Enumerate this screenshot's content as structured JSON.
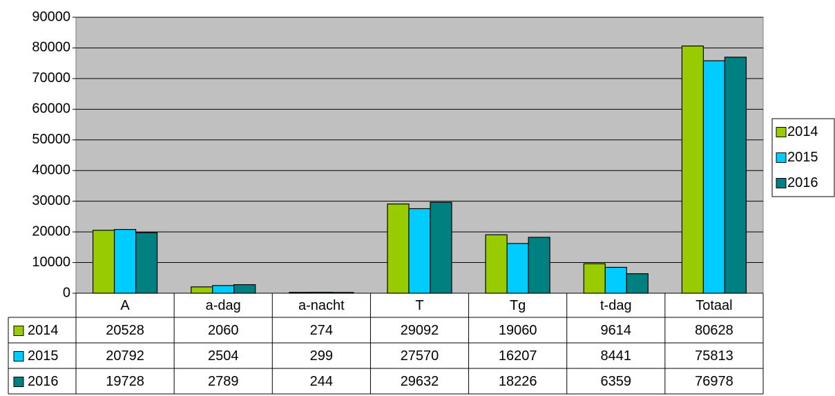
{
  "chart_data": {
    "type": "bar",
    "categories": [
      "A",
      "a-dag",
      "a-nacht",
      "T",
      "Tg",
      "t-dag",
      "Totaal"
    ],
    "series": [
      {
        "name": "2014",
        "color": "#99cc00",
        "values": [
          20528,
          2060,
          274,
          29092,
          19060,
          9614,
          80628
        ]
      },
      {
        "name": "2015",
        "color": "#00ccff",
        "values": [
          20792,
          2504,
          299,
          27570,
          16207,
          8441,
          75813
        ]
      },
      {
        "name": "2016",
        "color": "#008080",
        "values": [
          19728,
          2789,
          244,
          29632,
          18226,
          6359,
          76978
        ]
      }
    ],
    "ylim": [
      0,
      90000
    ],
    "yticks": [
      0,
      10000,
      20000,
      30000,
      40000,
      50000,
      60000,
      70000,
      80000,
      90000
    ],
    "grid": true,
    "legend": "right",
    "plot_background": "#c0c0c0",
    "data_table": true
  }
}
